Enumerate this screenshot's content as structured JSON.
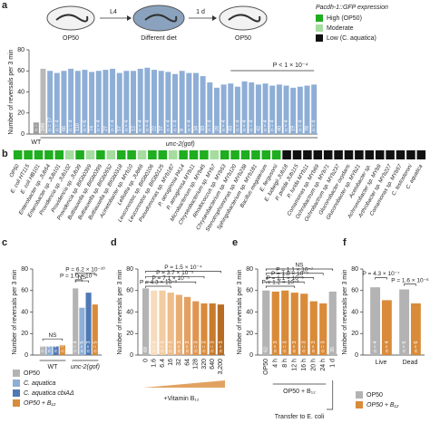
{
  "chart_data": [
    {
      "type": "bar",
      "panel_label": "a",
      "schematic": [
        "OP50",
        "L4",
        "Different diet",
        "1 d",
        "OP50"
      ],
      "legend": {
        "title": "Pacdh-1::GFP expression",
        "entries": [
          {
            "name": "High (OP50)",
            "color": "#1fae1f"
          },
          {
            "name": "Moderate",
            "color": "#a6dca0"
          },
          {
            "name": "Low (C. aquatica)",
            "color": "#111111"
          }
        ]
      },
      "ylabel": "Number of reversals per 3 min",
      "ylim": [
        0,
        80
      ],
      "yticks": [
        0,
        20,
        40,
        60,
        80
      ],
      "categories": [
        "WT",
        null,
        null,
        null,
        null,
        null,
        null,
        null,
        null,
        null,
        null,
        null,
        null,
        null,
        null,
        null,
        null,
        null,
        null,
        null,
        null,
        null,
        null,
        null,
        null,
        null,
        null,
        null,
        null,
        null,
        null,
        null,
        null,
        null,
        null,
        null,
        null,
        null,
        null,
        null,
        null
      ],
      "values": [
        11,
        62,
        60,
        58,
        60,
        62,
        60,
        61,
        59,
        60,
        61,
        62,
        58,
        60,
        60,
        62,
        63,
        61,
        60,
        59,
        57,
        60,
        58,
        58,
        55,
        49,
        44,
        47,
        48,
        45,
        50,
        49,
        47,
        48,
        46,
        47,
        46,
        44,
        45,
        46,
        47
      ],
      "colors": [
        "#9b9b9b",
        "#b8b8b8",
        "#8eaed6",
        "#8eaed6",
        "#8eaed6",
        "#8eaed6",
        "#8eaed6",
        "#8eaed6",
        "#8eaed6",
        "#8eaed6",
        "#8eaed6",
        "#8eaed6",
        "#8eaed6",
        "#8eaed6",
        "#8eaed6",
        "#8eaed6",
        "#8eaed6",
        "#8eaed6",
        "#8eaed6",
        "#8eaed6",
        "#8eaed6",
        "#8eaed6",
        "#8eaed6",
        "#8eaed6",
        "#8eaed6",
        "#8eaed6",
        "#8eaed6",
        "#8eaed6",
        "#8eaed6",
        "#8eaed6",
        "#8eaed6",
        "#8eaed6",
        "#8eaed6",
        "#8eaed6",
        "#8eaed6",
        "#8eaed6",
        "#8eaed6",
        "#8eaed6",
        "#8eaed6",
        "#8eaed6",
        "#8eaed6"
      ],
      "n_labels": [
        "n = 5",
        "249",
        "n = 17",
        "n = 4",
        "66",
        "n = 4",
        "110",
        "n = 6",
        "74",
        "n = 4",
        "27",
        "n = 4",
        "57",
        "n = 4",
        "12",
        "n = 4",
        "n = 4",
        "22",
        "37",
        "n = 4",
        "n = 4",
        "9",
        "n = 4",
        "34",
        "33",
        "n = 4",
        "28",
        "n = 4",
        "43",
        "n = 4",
        "n = 4",
        "n = 4",
        "42",
        "n = 4",
        "n = 4",
        "40",
        "n = 4",
        "19",
        "n = 4",
        "78",
        "n = 4"
      ],
      "group_label": "unc-2(gof)",
      "annotations": [
        "P < 1 × 10⁻⁴"
      ]
    },
    {
      "type": "strip",
      "panel_label": "b",
      "categories": [
        "OP50",
        "E. coli HT115",
        "E. coli HB101",
        "Enterobacter sp. JUb54",
        "Enterobacter sp. JUb101",
        "Providencia sp. JUb102",
        "Providencia sp. JUb39",
        "Providencia sp. BIGb0399",
        "Buttiauxella sp. BIGb0399",
        "Buttiauxella sp. BIGb0552",
        "Buttiauxella sp. BIGb0318",
        "Acinetobacter sp. MYb10",
        "Lelliottia sp. JUb66",
        "Leuconostoc sp. BIGb0106",
        "Leuconostoc sp. BIGb0125",
        "Pseudomonas sp. MYb187",
        "P. aeruginosa PA14",
        "P. aeruginosa MYb11",
        "Microbacterium sp. MYb45",
        "Chryseobacterium sp. MYb7",
        "Rhodococcus sp. MYb53",
        "Chryseobacterium sp. MYb120",
        "Stenotrophomonas sp. MYb238",
        "Sphingobacterium sp. MYb181",
        "Bacillus megaterium",
        "E. fergusonii",
        "E. ludwigii JUb18",
        "P. putida JUb115",
        "P. lurida MYb11",
        "Comamonas sp. MYb69",
        "Ochrobactrum sp. MYb71",
        "Ochrobactrum sp. MYb237",
        "Gluconobacter oxydans",
        "Gluconobacter sp. MYb21",
        "Acetobacter sp.",
        "Achromobacter sp. MYb9",
        "Arthrobacter sp. MYb227",
        "Comamonas sp. MYb57",
        "C. testosteroni",
        "C. aquatica"
      ],
      "levels": [
        0,
        0,
        0,
        0,
        0,
        1,
        0,
        1,
        0,
        1,
        0,
        0,
        1,
        0,
        0,
        1,
        0,
        0,
        0,
        1,
        0,
        0,
        0,
        0,
        0,
        0,
        2,
        2,
        2,
        2,
        2,
        2,
        2,
        2,
        2,
        2,
        2,
        2,
        2,
        2
      ]
    },
    {
      "type": "grouped-bar",
      "panel_label": "c",
      "ylabel": "Number of reversals per 3 min",
      "ylim": [
        0,
        80
      ],
      "yticks": [
        0,
        20,
        40,
        60,
        80
      ],
      "categories": [
        "WT",
        "unc-2(gof)"
      ],
      "series": [
        {
          "name": "OP50",
          "color": "#b3b3b3",
          "values": [
            8,
            62
          ],
          "n_labels": [
            "n = 3",
            "n = 4"
          ]
        },
        {
          "name": "C. aquatica",
          "color": "#8eaed6",
          "values": [
            8,
            44
          ],
          "n_labels": [
            "n = 3",
            "n = 5"
          ]
        },
        {
          "name": "C. aquatica cbiAΔ",
          "color": "#4f79b5",
          "values": [
            8,
            58
          ],
          "n_labels": [
            "n = 3",
            "n = 3"
          ]
        },
        {
          "name": "OP50 + B₁₂",
          "color": "#d98b3a",
          "values": [
            9,
            47
          ],
          "n_labels": [
            "n = 3",
            "n = 5"
          ]
        }
      ],
      "annotations": [
        "NS",
        "P = 6.2 × 10⁻¹⁰",
        "P = 1.0 × 10⁻⁹",
        "NS"
      ]
    },
    {
      "type": "bar",
      "panel_label": "d",
      "ylabel": "Number of reversals per 3 min",
      "ylim": [
        0,
        80
      ],
      "yticks": [
        0,
        20,
        40,
        60,
        80
      ],
      "categories": [
        "0",
        "1.6",
        "6.4",
        "16",
        "32",
        "64",
        "128",
        "320",
        "640",
        "3,200"
      ],
      "values": [
        62,
        60,
        60,
        58,
        56,
        54,
        50,
        48,
        48,
        47
      ],
      "colors": [
        "#b3b3b3",
        "#f6dcbd",
        "#f2cca3",
        "#eebd8a",
        "#e9ad72",
        "#e4a060",
        "#df9550",
        "#d98b3a",
        "#c97b2c",
        "#b86c22"
      ],
      "n_labels": [
        "69",
        "n = 3",
        "n = 3",
        "n = 3",
        "n = 3",
        "n = 3",
        "n = 3",
        "n = 3",
        "n = 3",
        "n = 3"
      ],
      "xlabel": "+Vitamin B₁₂",
      "annotations": [
        "P = 1.5 × 10⁻⁴",
        "P = 3.7 × 10⁻⁵",
        "P = 7.1 × 10⁻⁵",
        "P = 4.3 × 10⁻³"
      ]
    },
    {
      "type": "bar",
      "panel_label": "e",
      "ylabel": "Number of reversals per 3 min",
      "ylim": [
        0,
        80
      ],
      "yticks": [
        0,
        20,
        40,
        60,
        80
      ],
      "categories": [
        "OP50",
        "4 h",
        "8 h",
        "12 h",
        "16 h",
        "20 h",
        "24 h",
        "1 d"
      ],
      "values": [
        60,
        59,
        60,
        58,
        57,
        50,
        48,
        59
      ],
      "colors": [
        "#b3b3b3",
        "#d98b3a",
        "#d98b3a",
        "#d98b3a",
        "#d98b3a",
        "#d98b3a",
        "#d98b3a",
        "#b3b3b3"
      ],
      "n_labels": [
        "62",
        "n = 3",
        "n = 3",
        "n = 3",
        "n = 3",
        "n = 3",
        "n = 3",
        "35"
      ],
      "group_labels": [
        "OP50 + B₁₂",
        "Transfer to E. coli"
      ],
      "annotations": [
        "NS",
        "P = 1.1 × 10⁻⁷",
        "P = 1.8 × 10⁻⁷",
        "P = 1.1 × 10⁻⁵",
        "P = 1.2 × 10⁻³"
      ]
    },
    {
      "type": "grouped-bar",
      "panel_label": "f",
      "ylabel": "Number of reversals per 3 min",
      "ylim": [
        0,
        80
      ],
      "yticks": [
        0,
        20,
        40,
        60,
        80
      ],
      "categories": [
        "Live",
        "Dead"
      ],
      "series": [
        {
          "name": "OP50",
          "color": "#b3b3b3",
          "values": [
            63,
            61
          ],
          "n_labels": [
            "n = 4",
            "n = 6"
          ]
        },
        {
          "name": "OP50 + B₁₂",
          "color": "#d98b3a",
          "values": [
            51,
            48
          ],
          "n_labels": [
            "n = 4",
            "n = 6"
          ]
        }
      ],
      "annotations": [
        "P = 4.3 × 10⁻⁷",
        "P = 1.6 × 10⁻⁶"
      ]
    }
  ]
}
